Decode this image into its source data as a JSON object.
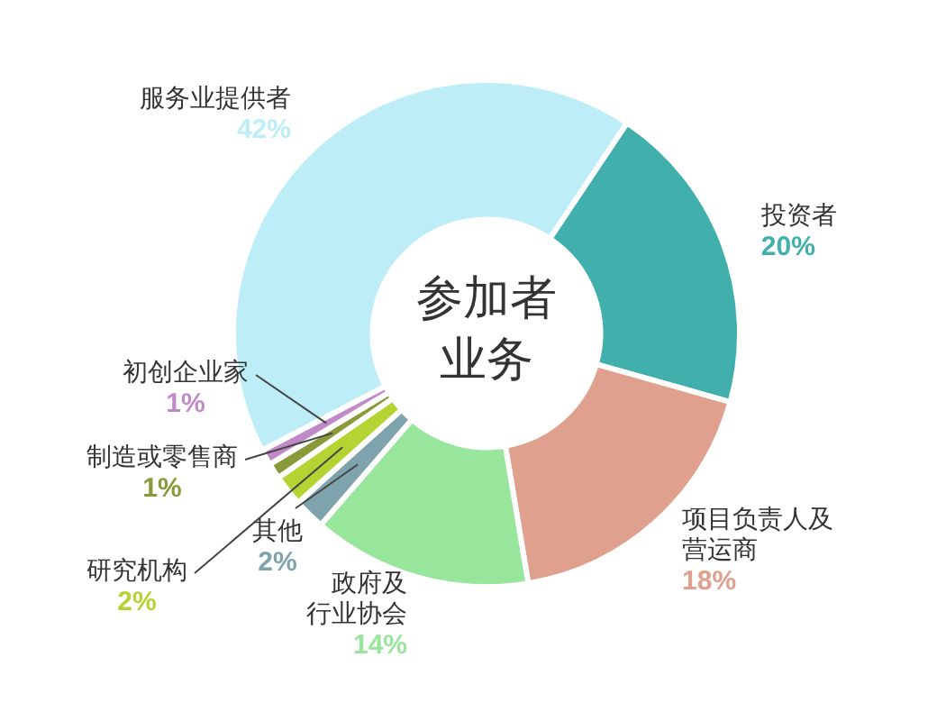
{
  "chart_data": {
    "type": "donut",
    "title": "参加者业务",
    "categories": [
      "投资者",
      "项目负责人及营运商",
      "政府及行业协会",
      "其他",
      "研究机构",
      "制造或零售商",
      "初创企业家",
      "服务业提供者"
    ],
    "values": [
      20,
      18,
      14,
      2,
      2,
      1,
      1,
      42
    ],
    "value_labels": [
      "20%",
      "18%",
      "14%",
      "2%",
      "2%",
      "1%",
      "1%",
      "42%"
    ],
    "colors": [
      "#41b0ad",
      "#e0a08e",
      "#98e59c",
      "#7fa3ad",
      "#b5d333",
      "#8a9a3a",
      "#c08ac8",
      "#bdeef8"
    ],
    "legend": false
  }
}
